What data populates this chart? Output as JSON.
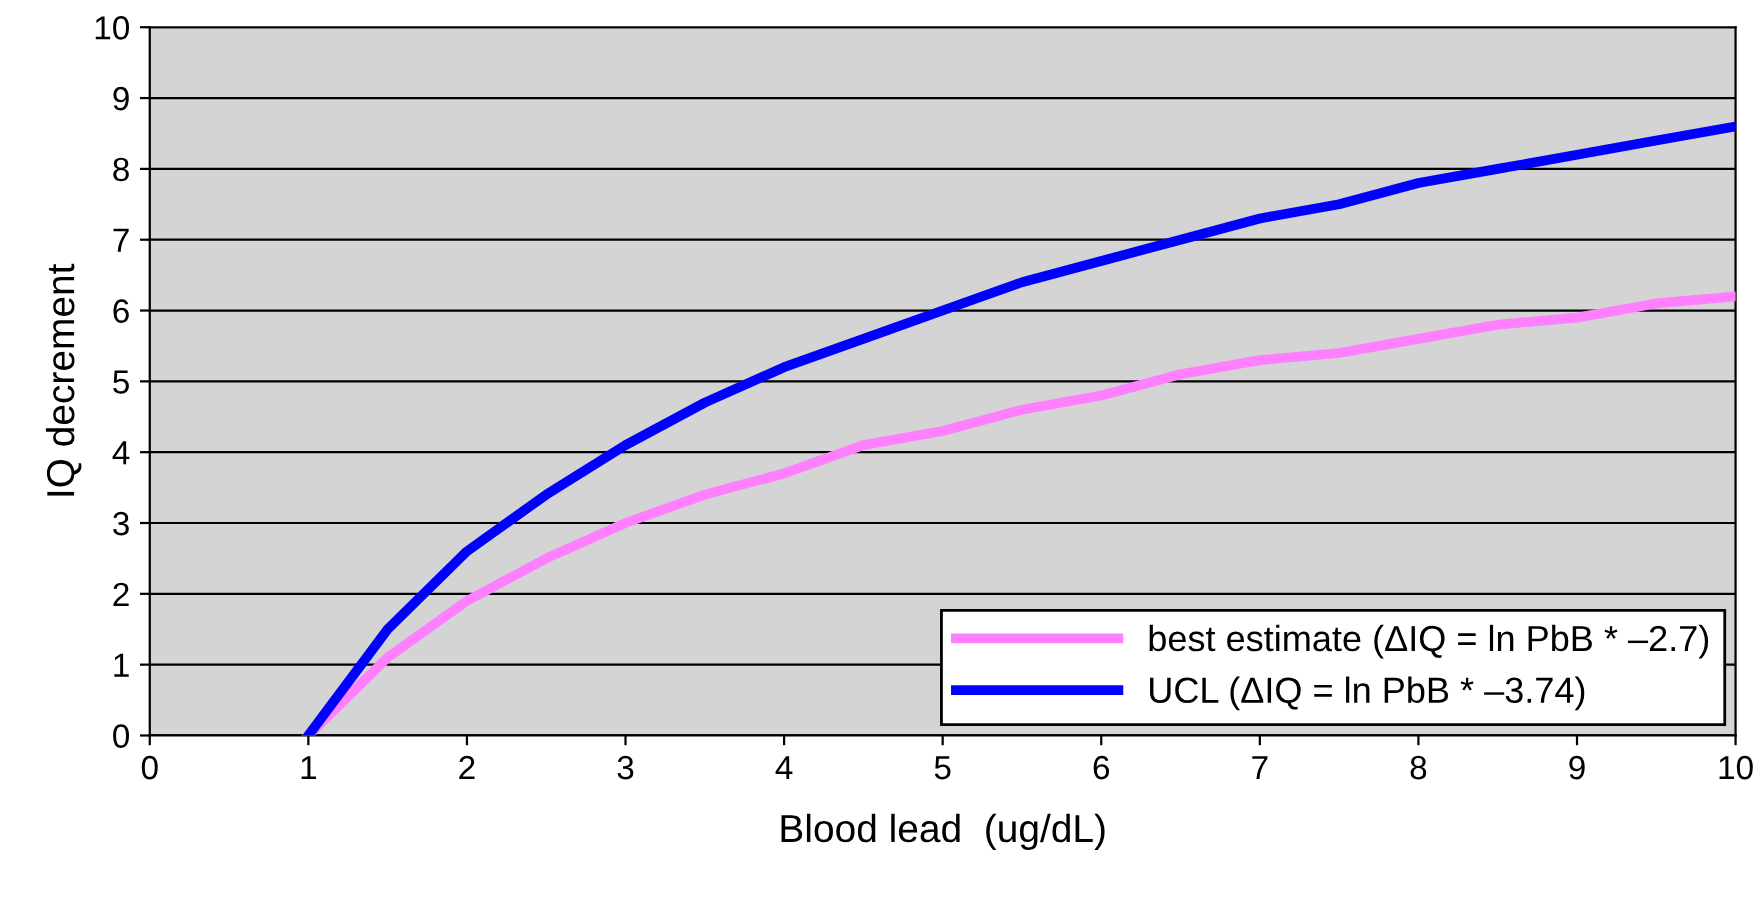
{
  "chart_data": {
    "type": "line",
    "xlabel": "Blood lead  (ug/dL)",
    "ylabel": "IQ decrement",
    "x": [
      1,
      1.5,
      2,
      2.5,
      3,
      3.5,
      4,
      4.5,
      5,
      5.5,
      6,
      6.5,
      7,
      7.5,
      8,
      8.5,
      9,
      9.5,
      10
    ],
    "series": [
      {
        "name": "best estimate (ΔIQ = ln PbB * –2.7)",
        "color": "#ff80ff",
        "values": [
          0,
          1.1,
          1.9,
          2.5,
          3.0,
          3.4,
          3.7,
          4.1,
          4.3,
          4.6,
          4.8,
          5.1,
          5.3,
          5.4,
          5.6,
          5.8,
          5.9,
          6.1,
          6.2
        ]
      },
      {
        "name": "UCL (ΔIQ = ln PbB * –3.74)",
        "color": "#0000ff",
        "values": [
          0,
          1.5,
          2.6,
          3.4,
          4.1,
          4.7,
          5.2,
          5.6,
          6.0,
          6.4,
          6.7,
          7.0,
          7.3,
          7.5,
          7.8,
          8.0,
          8.2,
          8.4,
          8.6
        ]
      }
    ],
    "xlim": [
      0,
      10
    ],
    "xticks": [
      0,
      1,
      2,
      3,
      4,
      5,
      6,
      7,
      8,
      9,
      10
    ],
    "ylim": [
      0,
      10
    ],
    "yticks": [
      0,
      1,
      2,
      3,
      4,
      5,
      6,
      7,
      8,
      9,
      10
    ],
    "grid": "y",
    "legend": "bottom right",
    "marker": "none",
    "line_style": "solid"
  }
}
